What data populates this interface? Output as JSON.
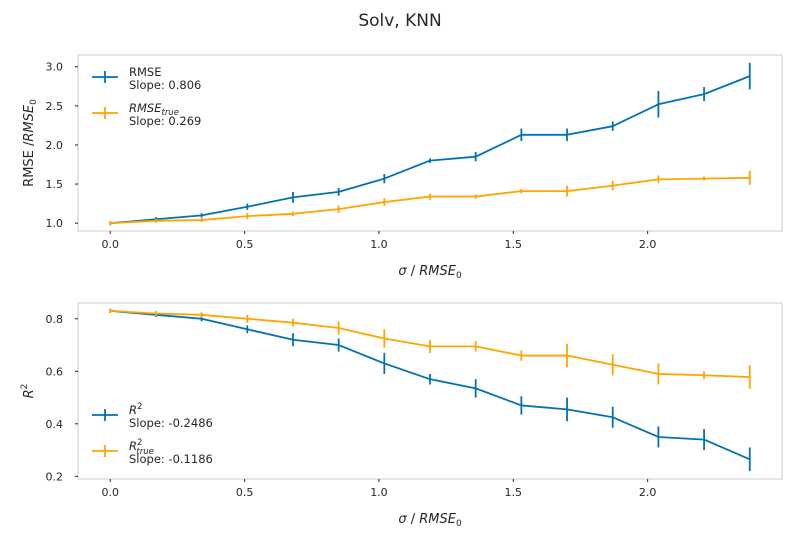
{
  "figure": {
    "title": "Solv, KNN"
  },
  "colors": {
    "blue": "#0072b2",
    "orange": "#ffa500"
  },
  "chart_data": [
    {
      "type": "line",
      "xlabel": "σ / RMSE₀",
      "ylabel": "RMSE /RMSE₀",
      "xlim": [
        -0.12,
        2.5
      ],
      "ylim": [
        0.9,
        3.15
      ],
      "xticks": [
        "0.0",
        "0.5",
        "1.0",
        "1.5",
        "2.0"
      ],
      "yticks": [
        "1.0",
        "1.5",
        "2.0",
        "2.5",
        "3.0"
      ],
      "legend_position": "upper-left",
      "x": [
        0.0,
        0.17,
        0.34,
        0.51,
        0.68,
        0.85,
        1.02,
        1.19,
        1.36,
        1.53,
        1.7,
        1.87,
        2.04,
        2.21,
        2.38
      ],
      "series": [
        {
          "name": "RMSE",
          "slope_label": "Slope: 0.806",
          "color": "#0072b2",
          "values": [
            1.0,
            1.05,
            1.1,
            1.21,
            1.33,
            1.4,
            1.57,
            1.8,
            1.85,
            2.13,
            2.13,
            2.24,
            2.52,
            2.65,
            2.88
          ],
          "errors": [
            0.01,
            0.01,
            0.02,
            0.04,
            0.07,
            0.05,
            0.06,
            0.03,
            0.06,
            0.08,
            0.08,
            0.06,
            0.17,
            0.09,
            0.17
          ]
        },
        {
          "name": "RMSE_true",
          "slope_label": "Slope: 0.269",
          "color": "#ffa500",
          "values": [
            1.0,
            1.03,
            1.04,
            1.09,
            1.12,
            1.18,
            1.27,
            1.34,
            1.34,
            1.41,
            1.41,
            1.48,
            1.56,
            1.57,
            1.58
          ],
          "errors": [
            0.01,
            0.01,
            0.02,
            0.04,
            0.03,
            0.05,
            0.05,
            0.04,
            0.03,
            0.03,
            0.07,
            0.06,
            0.05,
            0.02,
            0.09
          ]
        }
      ]
    },
    {
      "type": "line",
      "xlabel": "σ / RMSE₀",
      "ylabel": "R²",
      "xlim": [
        -0.12,
        2.5
      ],
      "ylim": [
        0.19,
        0.86
      ],
      "xticks": [
        "0.0",
        "0.5",
        "1.0",
        "1.5",
        "2.0"
      ],
      "yticks": [
        "0.2",
        "0.4",
        "0.6",
        "0.8"
      ],
      "legend_position": "lower-left",
      "x": [
        0.0,
        0.17,
        0.34,
        0.51,
        0.68,
        0.85,
        1.02,
        1.19,
        1.36,
        1.53,
        1.7,
        1.87,
        2.04,
        2.21,
        2.38
      ],
      "series": [
        {
          "name": "R²",
          "slope_label": "Slope: -0.2486",
          "color": "#0072b2",
          "values": [
            0.83,
            0.815,
            0.8,
            0.76,
            0.72,
            0.7,
            0.63,
            0.57,
            0.535,
            0.47,
            0.455,
            0.425,
            0.35,
            0.34,
            0.265
          ],
          "errors": [
            0.005,
            0.008,
            0.01,
            0.015,
            0.025,
            0.025,
            0.04,
            0.02,
            0.035,
            0.035,
            0.045,
            0.04,
            0.04,
            0.04,
            0.045
          ]
        },
        {
          "name": "R²_true",
          "slope_label": "Slope: -0.1186",
          "color": "#ffa500",
          "values": [
            0.83,
            0.82,
            0.815,
            0.8,
            0.785,
            0.765,
            0.725,
            0.695,
            0.695,
            0.66,
            0.66,
            0.625,
            0.59,
            0.585,
            0.578
          ],
          "errors": [
            0.005,
            0.01,
            0.01,
            0.015,
            0.015,
            0.025,
            0.035,
            0.025,
            0.02,
            0.02,
            0.045,
            0.04,
            0.04,
            0.015,
            0.045
          ]
        }
      ]
    }
  ]
}
